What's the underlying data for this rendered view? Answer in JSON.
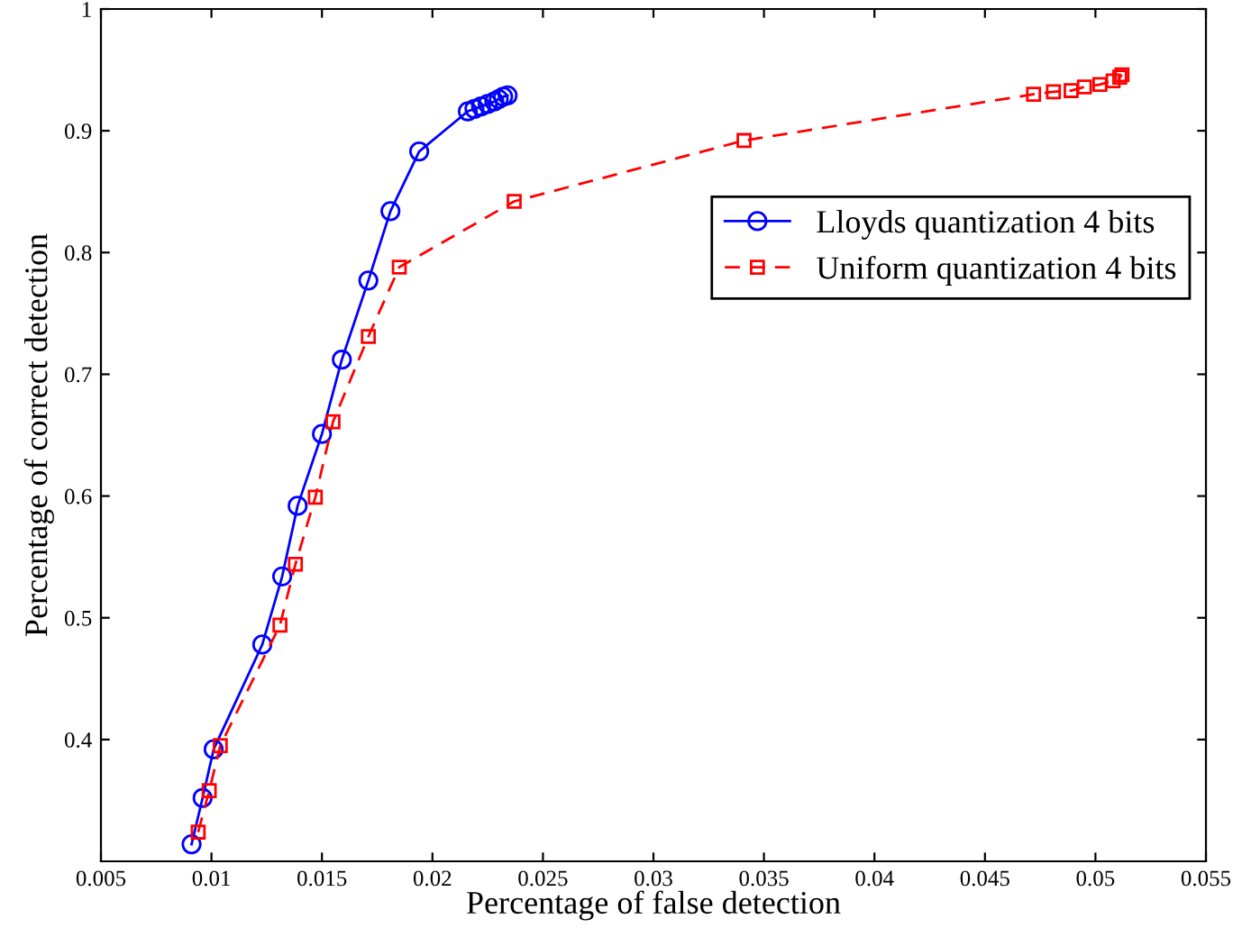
{
  "chart_data": {
    "type": "line",
    "xlabel": "Percentage of false detection",
    "ylabel": "Percentage of correct detection",
    "xlim": [
      0.005,
      0.055
    ],
    "xticks": [
      0.005,
      0.01,
      0.015,
      0.02,
      0.025,
      0.03,
      0.035,
      0.04,
      0.045,
      0.05,
      0.055
    ],
    "ylim": [
      0.3,
      1
    ],
    "yticks": [
      0.4,
      0.5,
      0.6,
      0.7,
      0.8,
      0.9,
      1
    ],
    "grid": false,
    "legend": "right",
    "series": [
      {
        "name": "Lloyds quantization 4 bits",
        "color": "#0000ff",
        "marker": "circle",
        "line_style": "solid",
        "x": [
          0.0091,
          0.0096,
          0.0101,
          0.0123,
          0.0132,
          0.0139,
          0.015,
          0.0159,
          0.0171,
          0.0181,
          0.0194,
          0.0216,
          0.0219,
          0.0222,
          0.0225,
          0.0228,
          0.023,
          0.0232,
          0.0234
        ],
        "values": [
          0.314,
          0.352,
          0.392,
          0.478,
          0.534,
          0.592,
          0.651,
          0.712,
          0.777,
          0.834,
          0.883,
          0.916,
          0.918,
          0.92,
          0.922,
          0.924,
          0.926,
          0.928,
          0.929
        ]
      },
      {
        "name": "Uniform quantization 4 bits",
        "color": "#ff0000",
        "marker": "square",
        "line_style": "dashed",
        "x": [
          0.0094,
          0.0099,
          0.0104,
          0.0131,
          0.0138,
          0.0147,
          0.0155,
          0.0171,
          0.0185,
          0.0237,
          0.0341,
          0.0472,
          0.0481,
          0.0489,
          0.0495,
          0.0502,
          0.0508,
          0.0511,
          0.0512
        ],
        "values": [
          0.324,
          0.358,
          0.395,
          0.494,
          0.544,
          0.599,
          0.661,
          0.731,
          0.788,
          0.842,
          0.892,
          0.93,
          0.932,
          0.933,
          0.936,
          0.938,
          0.941,
          0.944,
          0.946
        ]
      }
    ]
  }
}
